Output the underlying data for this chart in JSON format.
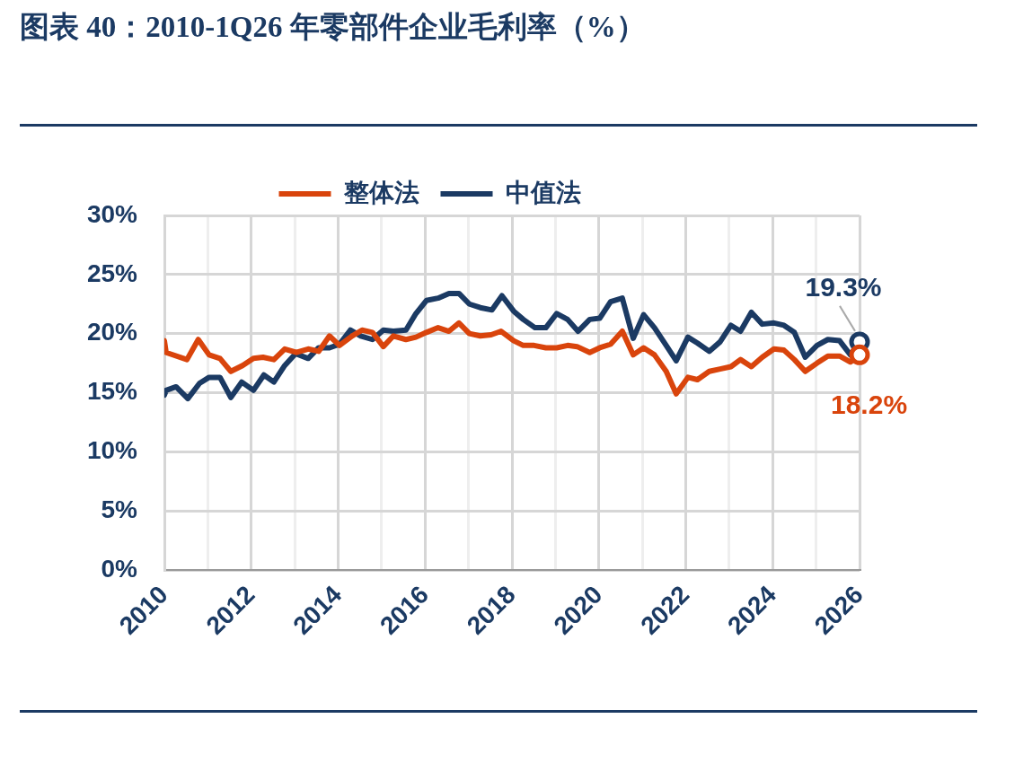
{
  "chart_data": {
    "type": "line",
    "title": "图表 40：2010-1Q26 年零部件企业毛利率（%）",
    "series": [
      {
        "name": "整体法",
        "color": "#d9440c",
        "x": [
          2010.0,
          2010.04,
          2010.52,
          2010.78,
          2011.03,
          2011.28,
          2011.53,
          2011.8,
          2012.05,
          2012.27,
          2012.52,
          2012.77,
          2013.04,
          2013.31,
          2013.55,
          2013.8,
          2014.03,
          2014.32,
          2014.55,
          2014.79,
          2015.04,
          2015.27,
          2015.56,
          2015.79,
          2016.03,
          2016.3,
          2016.55,
          2016.78,
          2017.02,
          2017.27,
          2017.52,
          2017.75,
          2018.04,
          2018.26,
          2018.51,
          2018.78,
          2019.03,
          2019.28,
          2019.5,
          2019.79,
          2020.02,
          2020.27,
          2020.54,
          2020.79,
          2021.03,
          2021.28,
          2021.55,
          2021.78,
          2022.05,
          2022.27,
          2022.54,
          2022.79,
          2023.04,
          2023.26,
          2023.51,
          2023.76,
          2024.03,
          2024.26,
          2024.5,
          2024.75,
          2025.02,
          2025.27,
          2025.54,
          2025.79,
          2026.0
        ],
        "values": [
          19.4,
          18.4,
          17.8,
          19.5,
          18.2,
          17.9,
          16.8,
          17.3,
          17.9,
          18.0,
          17.8,
          18.7,
          18.4,
          18.7,
          18.5,
          19.8,
          19.0,
          19.8,
          20.3,
          20.1,
          18.9,
          19.8,
          19.5,
          19.7,
          20.1,
          20.5,
          20.2,
          20.9,
          20.0,
          19.8,
          19.9,
          20.2,
          19.4,
          19.0,
          19.0,
          18.8,
          18.8,
          19.0,
          18.9,
          18.4,
          18.8,
          19.1,
          20.2,
          18.2,
          18.8,
          18.2,
          16.8,
          14.9,
          16.3,
          16.1,
          16.8,
          17.0,
          17.2,
          17.8,
          17.2,
          18.0,
          18.7,
          18.6,
          17.8,
          16.8,
          17.5,
          18.1,
          18.1,
          17.6,
          18.2
        ]
      },
      {
        "name": "中值法",
        "color": "#1b3a63",
        "x": [
          2010.0,
          2010.04,
          2010.27,
          2010.54,
          2010.81,
          2011.03,
          2011.28,
          2011.53,
          2011.78,
          2012.05,
          2012.29,
          2012.52,
          2012.77,
          2013.02,
          2013.31,
          2013.55,
          2013.8,
          2014.03,
          2014.28,
          2014.52,
          2014.79,
          2015.04,
          2015.27,
          2015.56,
          2015.79,
          2016.03,
          2016.3,
          2016.55,
          2016.78,
          2017.02,
          2017.27,
          2017.54,
          2017.77,
          2018.04,
          2018.26,
          2018.53,
          2018.78,
          2019.03,
          2019.28,
          2019.52,
          2019.79,
          2020.02,
          2020.27,
          2020.54,
          2020.79,
          2021.03,
          2021.28,
          2021.55,
          2021.78,
          2022.05,
          2022.27,
          2022.54,
          2022.79,
          2023.04,
          2023.26,
          2023.51,
          2023.76,
          2024.03,
          2024.26,
          2024.5,
          2024.75,
          2025.02,
          2025.27,
          2025.54,
          2025.79,
          2026.0
        ],
        "values": [
          14.8,
          15.2,
          15.5,
          14.5,
          15.8,
          16.3,
          16.3,
          14.6,
          15.9,
          15.2,
          16.5,
          15.9,
          17.3,
          18.3,
          17.9,
          18.8,
          18.8,
          19.1,
          20.3,
          19.8,
          19.5,
          20.3,
          20.2,
          20.3,
          21.7,
          22.8,
          23.0,
          23.4,
          23.4,
          22.5,
          22.2,
          22.0,
          23.2,
          21.9,
          21.2,
          20.5,
          20.5,
          21.7,
          21.2,
          20.2,
          21.2,
          21.3,
          22.7,
          23.0,
          19.6,
          21.6,
          20.5,
          19.0,
          17.7,
          19.7,
          19.2,
          18.5,
          19.3,
          20.7,
          20.2,
          21.8,
          20.8,
          20.9,
          20.7,
          20.1,
          18.0,
          19.0,
          19.5,
          19.4,
          18.2,
          19.3
        ]
      }
    ],
    "annotations": [
      {
        "text": "19.3%",
        "x": 2026,
        "y": 19.3
      },
      {
        "text": "18.2%",
        "x": 2026,
        "y": 18.2
      }
    ],
    "xlim": [
      2010,
      2026
    ],
    "xticks": [
      2010,
      {
        "value": 2011,
        "label": null
      },
      2012,
      {
        "value": 2013,
        "label": null
      },
      2014,
      {
        "value": 2015,
        "label": null
      },
      2016,
      {
        "value": 2017,
        "label": null
      },
      2018,
      {
        "value": 2019,
        "label": null
      },
      2020,
      {
        "value": 2021,
        "label": null
      },
      2022,
      {
        "value": 2023,
        "label": null
      },
      2024,
      {
        "value": 2025,
        "label": null
      },
      2026
    ],
    "ylim": [
      0,
      30
    ],
    "yticks": [
      {
        "value": 0,
        "label": "0%"
      },
      {
        "value": 5,
        "label": "5%"
      },
      {
        "value": 10,
        "label": "10%"
      },
      {
        "value": 15,
        "label": "15%"
      },
      {
        "value": 20,
        "label": "20%"
      },
      {
        "value": 25,
        "label": "25%"
      },
      {
        "value": 30,
        "label": "30%"
      }
    ],
    "grid": true,
    "legend": "top",
    "marker": "none",
    "line_style": "solid"
  }
}
